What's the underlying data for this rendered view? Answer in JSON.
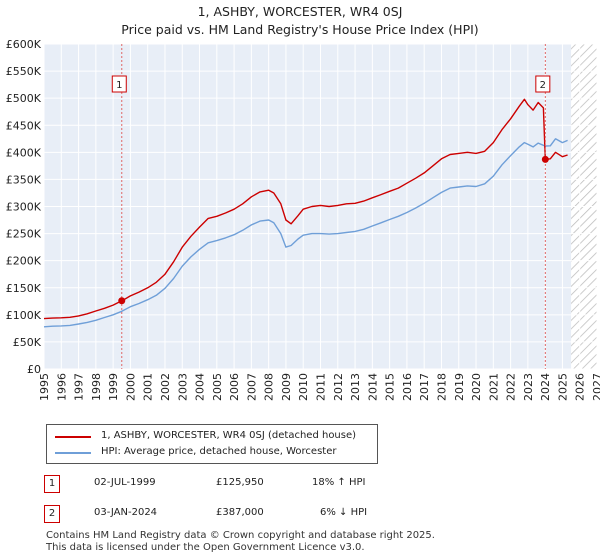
{
  "title": "1, ASHBY, WORCESTER, WR4 0SJ",
  "subtitle": "Price paid vs. HM Land Registry's House Price Index (HPI)",
  "chart_data": {
    "type": "line",
    "title": "1, ASHBY, WORCESTER, WR4 0SJ",
    "subtitle": "Price paid vs. HM Land Registry's House Price Index (HPI)",
    "xlim": [
      1995,
      2027
    ],
    "ylim": [
      0,
      600000
    ],
    "x_ticks": [
      "1995",
      "1996",
      "1997",
      "1998",
      "1999",
      "2000",
      "2001",
      "2002",
      "2003",
      "2004",
      "2005",
      "2006",
      "2007",
      "2008",
      "2009",
      "2010",
      "2011",
      "2012",
      "2013",
      "2014",
      "2015",
      "2016",
      "2017",
      "2018",
      "2019",
      "2020",
      "2021",
      "2022",
      "2023",
      "2024",
      "2025",
      "2026",
      "2027"
    ],
    "y_ticks": [
      {
        "value": 0,
        "label": "£0"
      },
      {
        "value": 50000,
        "label": "£50K"
      },
      {
        "value": 100000,
        "label": "£100K"
      },
      {
        "value": 150000,
        "label": "£150K"
      },
      {
        "value": 200000,
        "label": "£200K"
      },
      {
        "value": 250000,
        "label": "£250K"
      },
      {
        "value": 300000,
        "label": "£300K"
      },
      {
        "value": 350000,
        "label": "£350K"
      },
      {
        "value": 400000,
        "label": "£400K"
      },
      {
        "value": 450000,
        "label": "£450K"
      },
      {
        "value": 500000,
        "label": "£500K"
      },
      {
        "value": 550000,
        "label": "£550K"
      },
      {
        "value": 600000,
        "label": "£600K"
      }
    ],
    "grid": true,
    "series": [
      {
        "name": "1, ASHBY, WORCESTER, WR4 0SJ (detached house)",
        "color": "#cc0000",
        "points": [
          [
            1995.0,
            93000
          ],
          [
            1995.5,
            94000
          ],
          [
            1996.0,
            94500
          ],
          [
            1996.5,
            95500
          ],
          [
            1997.0,
            98000
          ],
          [
            1997.5,
            102000
          ],
          [
            1998.0,
            107000
          ],
          [
            1998.5,
            112000
          ],
          [
            1999.0,
            118000
          ],
          [
            1999.5,
            125950
          ],
          [
            2000.0,
            135000
          ],
          [
            2000.5,
            142000
          ],
          [
            2001.0,
            150000
          ],
          [
            2001.5,
            160000
          ],
          [
            2002.0,
            175000
          ],
          [
            2002.5,
            198000
          ],
          [
            2003.0,
            225000
          ],
          [
            2003.5,
            245000
          ],
          [
            2004.0,
            262000
          ],
          [
            2004.5,
            278000
          ],
          [
            2005.0,
            282000
          ],
          [
            2005.5,
            288000
          ],
          [
            2006.0,
            295000
          ],
          [
            2006.5,
            305000
          ],
          [
            2007.0,
            318000
          ],
          [
            2007.5,
            327000
          ],
          [
            2008.0,
            330000
          ],
          [
            2008.3,
            325000
          ],
          [
            2008.7,
            305000
          ],
          [
            2009.0,
            275000
          ],
          [
            2009.3,
            268000
          ],
          [
            2009.7,
            283000
          ],
          [
            2010.0,
            295000
          ],
          [
            2010.5,
            300000
          ],
          [
            2011.0,
            302000
          ],
          [
            2011.5,
            300000
          ],
          [
            2012.0,
            302000
          ],
          [
            2012.5,
            305000
          ],
          [
            2013.0,
            306000
          ],
          [
            2013.5,
            310000
          ],
          [
            2014.0,
            316000
          ],
          [
            2014.5,
            322000
          ],
          [
            2015.0,
            328000
          ],
          [
            2015.5,
            334000
          ],
          [
            2016.0,
            343000
          ],
          [
            2016.5,
            352000
          ],
          [
            2017.0,
            362000
          ],
          [
            2017.5,
            375000
          ],
          [
            2018.0,
            388000
          ],
          [
            2018.5,
            396000
          ],
          [
            2019.0,
            398000
          ],
          [
            2019.5,
            400000
          ],
          [
            2020.0,
            398000
          ],
          [
            2020.5,
            402000
          ],
          [
            2021.0,
            418000
          ],
          [
            2021.5,
            442000
          ],
          [
            2022.0,
            462000
          ],
          [
            2022.5,
            485000
          ],
          [
            2022.8,
            498000
          ],
          [
            2023.0,
            488000
          ],
          [
            2023.3,
            478000
          ],
          [
            2023.6,
            492000
          ],
          [
            2023.9,
            482000
          ],
          [
            2024.01,
            387000
          ],
          [
            2024.3,
            388000
          ],
          [
            2024.6,
            400000
          ],
          [
            2025.0,
            392000
          ],
          [
            2025.3,
            395000
          ]
        ]
      },
      {
        "name": "HPI: Average price, detached house, Worcester",
        "color": "#6f9fd8",
        "points": [
          [
            1995.0,
            78000
          ],
          [
            1995.5,
            79000
          ],
          [
            1996.0,
            79500
          ],
          [
            1996.5,
            80500
          ],
          [
            1997.0,
            83000
          ],
          [
            1997.5,
            86000
          ],
          [
            1998.0,
            90000
          ],
          [
            1998.5,
            95000
          ],
          [
            1999.0,
            100000
          ],
          [
            1999.5,
            106600
          ],
          [
            2000.0,
            115000
          ],
          [
            2000.5,
            121000
          ],
          [
            2001.0,
            128000
          ],
          [
            2001.5,
            136000
          ],
          [
            2002.0,
            149000
          ],
          [
            2002.5,
            167000
          ],
          [
            2003.0,
            190000
          ],
          [
            2003.5,
            207000
          ],
          [
            2004.0,
            221000
          ],
          [
            2004.5,
            233000
          ],
          [
            2005.0,
            237000
          ],
          [
            2005.5,
            242000
          ],
          [
            2006.0,
            248000
          ],
          [
            2006.5,
            256000
          ],
          [
            2007.0,
            266000
          ],
          [
            2007.5,
            273000
          ],
          [
            2008.0,
            275000
          ],
          [
            2008.3,
            270000
          ],
          [
            2008.7,
            250000
          ],
          [
            2009.0,
            225000
          ],
          [
            2009.3,
            228000
          ],
          [
            2009.7,
            240000
          ],
          [
            2010.0,
            247000
          ],
          [
            2010.5,
            250000
          ],
          [
            2011.0,
            250000
          ],
          [
            2011.5,
            249000
          ],
          [
            2012.0,
            250000
          ],
          [
            2012.5,
            252000
          ],
          [
            2013.0,
            254000
          ],
          [
            2013.5,
            258000
          ],
          [
            2014.0,
            264000
          ],
          [
            2014.5,
            270000
          ],
          [
            2015.0,
            276000
          ],
          [
            2015.5,
            282000
          ],
          [
            2016.0,
            289000
          ],
          [
            2016.5,
            297000
          ],
          [
            2017.0,
            306000
          ],
          [
            2017.5,
            316000
          ],
          [
            2018.0,
            326000
          ],
          [
            2018.5,
            334000
          ],
          [
            2019.0,
            336000
          ],
          [
            2019.5,
            338000
          ],
          [
            2020.0,
            337000
          ],
          [
            2020.5,
            342000
          ],
          [
            2021.0,
            356000
          ],
          [
            2021.5,
            377000
          ],
          [
            2022.0,
            394000
          ],
          [
            2022.5,
            410000
          ],
          [
            2022.8,
            418000
          ],
          [
            2023.0,
            415000
          ],
          [
            2023.3,
            410000
          ],
          [
            2023.6,
            417000
          ],
          [
            2023.9,
            413000
          ],
          [
            2024.01,
            411700
          ],
          [
            2024.3,
            412000
          ],
          [
            2024.6,
            425000
          ],
          [
            2025.0,
            418000
          ],
          [
            2025.3,
            422000
          ]
        ]
      }
    ],
    "markers": [
      {
        "label": "1",
        "date": "02-JUL-1999",
        "x": 1999.5,
        "price": 125950,
        "price_label": "£125,950",
        "hpi": "18% ↑ HPI"
      },
      {
        "label": "2",
        "date": "03-JAN-2024",
        "x": 2024.01,
        "price": 387000,
        "price_label": "£387,000",
        "hpi": "6% ↓ HPI"
      }
    ],
    "forecast_hatch_from": 2025.5,
    "colors": {
      "price": "#cc0000",
      "hpi": "#6f9fd8",
      "plot_bg": "#e8eef7",
      "grid": "#ffffff",
      "vline": "#e06666"
    }
  },
  "legend": {
    "price_label": "1, ASHBY, WORCESTER, WR4 0SJ (detached house)",
    "hpi_label": "HPI: Average price, detached house, Worcester"
  },
  "table": [
    {
      "num": "1",
      "date": "02-JUL-1999",
      "price": "£125,950",
      "hpi": "18% ↑ HPI"
    },
    {
      "num": "2",
      "date": "03-JAN-2024",
      "price": "£387,000",
      "hpi": "6% ↓ HPI"
    }
  ],
  "footer": {
    "line1": "Contains HM Land Registry data © Crown copyright and database right 2025.",
    "line2": "This data is licensed under the Open Government Licence v3.0."
  }
}
